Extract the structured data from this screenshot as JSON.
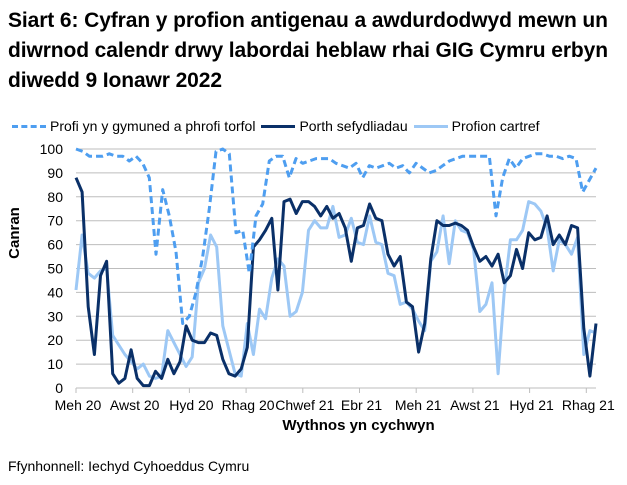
{
  "title": "Siart 6: Cyfran y profion antigenau a awdurdodwyd mewn un diwrnod calendr drwy labordai heblaw rhai GIG Cymru erbyn diwedd 9 Ionawr 2022",
  "legend": [
    {
      "label": "Profi yn y gymuned a phrofi torfol",
      "style": "dashed",
      "color": "#4e9ef0"
    },
    {
      "label": "Porth sefydliadau",
      "style": "solid",
      "color": "#0a3068"
    },
    {
      "label": "Profion cartref",
      "style": "solid",
      "color": "#9dc8f5"
    }
  ],
  "source": "Ffynhonnell: Iechyd Cyhoeddus Cymru",
  "chart_data": {
    "type": "line",
    "title": "Siart 6: Cyfran y profion antigenau a awdurdodwyd mewn un diwrnod calendr drwy labordai heblaw rhai GIG Cymru erbyn diwedd 9 Ionawr 2022",
    "xlabel": "Wythnos yn cychwyn",
    "ylabel": "Canran",
    "ylim": [
      0,
      100
    ],
    "yticks": [
      0,
      10,
      20,
      30,
      40,
      50,
      60,
      70,
      80,
      90,
      100
    ],
    "xtick_labels": [
      "Meh 20",
      "Awst 20",
      "Hyd 20",
      "Rhag 20",
      "Chwef 21",
      "Ebr 21",
      "Meh 21",
      "Awst 21",
      "Hyd 21",
      "Rhag 21"
    ],
    "grid": true,
    "legend_position": "top",
    "series": [
      {
        "name": "Profi yn y gymuned a phrofi torfol",
        "values": [
          100,
          99,
          97,
          97,
          97,
          98,
          97,
          97,
          95,
          97,
          94,
          88,
          56,
          83,
          72,
          57,
          27,
          30,
          40,
          55,
          75,
          99,
          100,
          98,
          65,
          66,
          48,
          72,
          77,
          95,
          97,
          97,
          88,
          96,
          94,
          95,
          96,
          96,
          96,
          94,
          93,
          92,
          94,
          88,
          93,
          92,
          93,
          94,
          92,
          93,
          90,
          94,
          92,
          90,
          91,
          93,
          95,
          96,
          97,
          97,
          97,
          97,
          97,
          72,
          88,
          96,
          92,
          96,
          97,
          98,
          98,
          97,
          97,
          96,
          97,
          96,
          82,
          87,
          92
        ]
      },
      {
        "name": "Porth sefydliadau",
        "values": [
          88,
          82,
          34,
          14,
          47,
          53,
          6,
          2,
          4,
          16,
          4,
          1,
          1,
          7,
          4,
          12,
          6,
          11,
          26,
          20,
          19,
          19,
          23,
          22,
          12,
          6,
          5,
          8,
          17,
          59,
          62,
          66,
          71,
          41,
          78,
          79,
          73,
          78,
          78,
          76,
          72,
          76,
          71,
          73,
          67,
          53,
          67,
          68,
          77,
          71,
          70,
          56,
          51,
          55,
          36,
          34,
          15,
          27,
          54,
          70,
          68,
          68,
          69,
          68,
          66,
          59,
          53,
          55,
          51,
          56,
          44,
          47,
          58,
          50,
          65,
          62,
          63,
          72,
          60,
          64,
          60,
          68,
          67,
          25,
          5,
          27
        ]
      },
      {
        "name": "Profion cartref",
        "values": [
          41,
          64,
          48,
          46,
          49,
          50,
          22,
          18,
          14,
          11,
          8,
          10,
          5,
          4,
          5,
          24,
          19,
          14,
          9,
          13,
          44,
          50,
          64,
          59,
          26,
          16,
          6,
          5,
          27,
          14,
          33,
          29,
          46,
          54,
          51,
          30,
          32,
          40,
          66,
          70,
          67,
          67,
          76,
          63,
          64,
          71,
          61,
          60,
          72,
          61,
          60,
          48,
          47,
          35,
          36,
          33,
          28,
          24,
          53,
          57,
          72,
          52,
          70,
          66,
          65,
          58,
          32,
          35,
          44,
          6,
          40,
          62,
          62,
          66,
          78,
          77,
          74,
          67,
          49,
          62,
          60,
          56,
          63,
          14,
          24,
          23
        ]
      }
    ]
  },
  "axis": {
    "ylabel": "Canran",
    "xlabel": "Wythnos yn cychwyn"
  }
}
